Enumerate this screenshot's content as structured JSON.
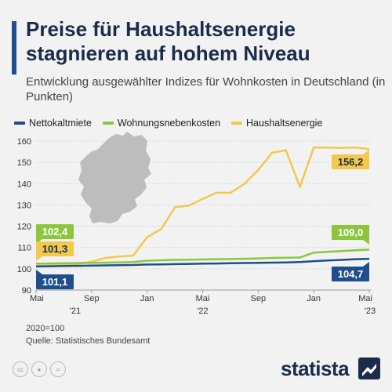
{
  "header": {
    "title": "Preise für Haushaltsenergie stagnieren auf hohem Niveau",
    "subtitle": "Entwicklung ausgewählter Indizes für Wohnkosten in Deutschland (in Punkten)"
  },
  "footer": {
    "base_note": "2020=100",
    "source": "Quelle: Statistisches Bundesamt",
    "brand": "statista"
  },
  "colors": {
    "navy": "#1f4e8c",
    "green": "#8cc63f",
    "yellow": "#f2c94c",
    "map": "#bdbdbd"
  },
  "icons": [
    "creative-commons-icon",
    "attribution-icon",
    "no-derivatives-icon",
    "statista-logo-icon"
  ],
  "chart_data": {
    "type": "line",
    "title": "Preise für Haushaltsenergie stagnieren auf hohem Niveau",
    "subtitle": "Entwicklung ausgewählter Indizes für Wohnkosten in Deutschland (in Punkten)",
    "xlabel": "",
    "ylabel": "",
    "ylim": [
      90,
      160
    ],
    "yticks": [
      90,
      100,
      110,
      120,
      130,
      140,
      150,
      160
    ],
    "grid": true,
    "legend_position": "top",
    "x": [
      "2021-05",
      "2021-06",
      "2021-07",
      "2021-08",
      "2021-09",
      "2021-10",
      "2021-11",
      "2021-12",
      "2022-01",
      "2022-02",
      "2022-03",
      "2022-04",
      "2022-05",
      "2022-06",
      "2022-07",
      "2022-08",
      "2022-09",
      "2022-10",
      "2022-11",
      "2022-12",
      "2023-01",
      "2023-02",
      "2023-03",
      "2023-04",
      "2023-05"
    ],
    "xtick_labels": [
      {
        "x": "2021-05",
        "label": "Mai",
        "year": "'21"
      },
      {
        "x": "2021-09",
        "label": "Sep",
        "year": ""
      },
      {
        "x": "2022-01",
        "label": "Jan",
        "year": ""
      },
      {
        "x": "2022-05",
        "label": "Mai",
        "year": "'22"
      },
      {
        "x": "2022-09",
        "label": "Sep",
        "year": ""
      },
      {
        "x": "2023-01",
        "label": "Jan",
        "year": ""
      },
      {
        "x": "2023-05",
        "label": "Mai",
        "year": "'23"
      }
    ],
    "series": [
      {
        "name": "Nettokaltmiete",
        "color": "#1f4e8c",
        "values": [
          101.1,
          101.2,
          101.3,
          101.4,
          101.5,
          101.6,
          101.7,
          101.8,
          102.0,
          102.1,
          102.2,
          102.3,
          102.4,
          102.5,
          102.6,
          102.7,
          102.8,
          102.9,
          103.0,
          103.2,
          103.6,
          103.9,
          104.2,
          104.5,
          104.7
        ],
        "start_label": "101,1",
        "end_label": "104,7"
      },
      {
        "name": "Wohnungsnebenkosten",
        "color": "#8cc63f",
        "values": [
          102.4,
          102.5,
          102.6,
          102.7,
          102.8,
          102.9,
          103.0,
          103.2,
          103.8,
          104.0,
          104.2,
          104.3,
          104.4,
          104.5,
          104.6,
          104.7,
          104.9,
          105.1,
          105.2,
          105.3,
          107.6,
          108.0,
          108.3,
          108.7,
          109.0
        ],
        "start_label": "102,4",
        "end_label": "109,0"
      },
      {
        "name": "Haushaltsenergie",
        "color": "#f2c94c",
        "values": [
          101.3,
          101.5,
          101.7,
          102.2,
          103.3,
          105.1,
          105.8,
          106.2,
          114.9,
          118.6,
          128.9,
          129.7,
          132.8,
          135.8,
          135.7,
          139.9,
          146.4,
          154.5,
          155.7,
          138.4,
          157.0,
          157.0,
          156.8,
          157.0,
          156.2
        ],
        "start_label": "101,3",
        "end_label": "156,2"
      }
    ]
  }
}
